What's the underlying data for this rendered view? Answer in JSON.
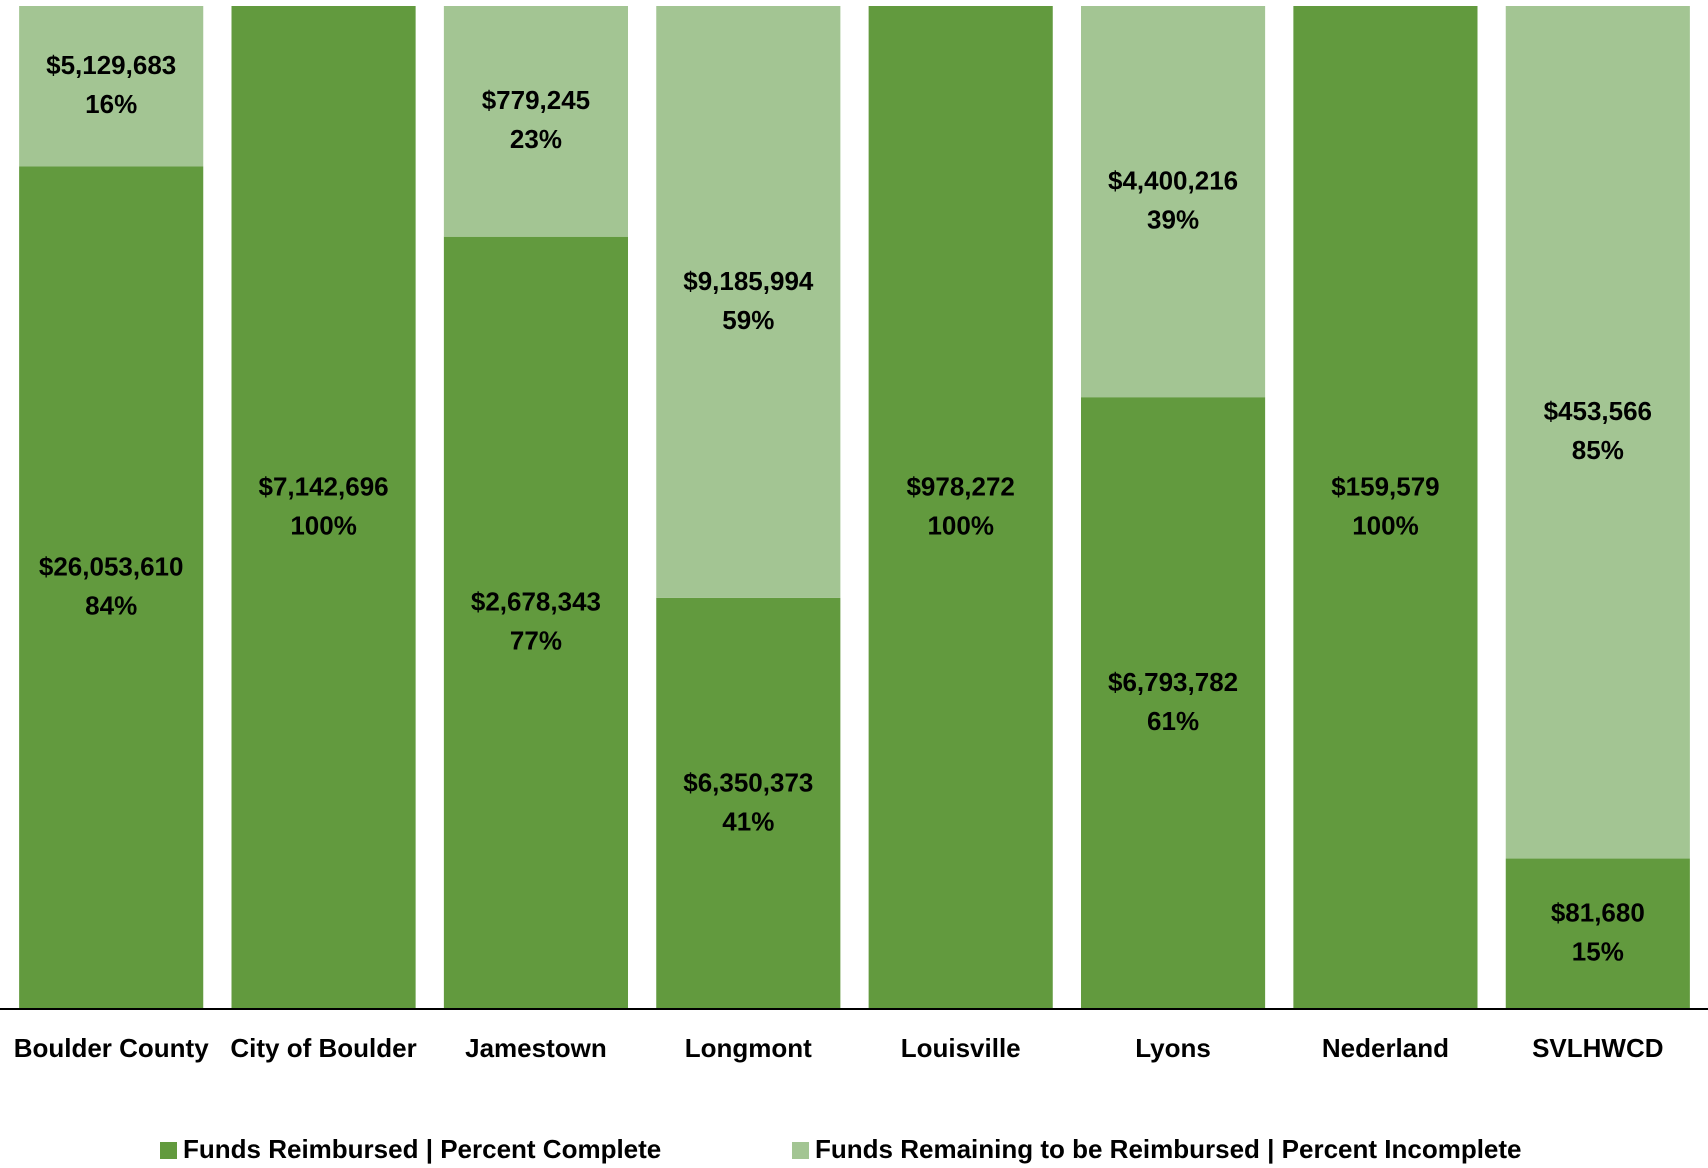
{
  "chart_data": {
    "type": "stacked_bar_100",
    "categories": [
      "Boulder County",
      "City of Boulder",
      "Jamestown",
      "Longmont",
      "Louisville",
      "Lyons",
      "Nederland",
      "SVLHWCD"
    ],
    "ylim": [
      0,
      100
    ],
    "legend": "bottom",
    "series": [
      {
        "name": "Funds Reimbursed | Percent Complete",
        "color": "#629a3e",
        "values": [
          84,
          100,
          77,
          41,
          100,
          61,
          100,
          15
        ],
        "value_labels": [
          "84%",
          "100%",
          "77%",
          "41%",
          "100%",
          "61%",
          "100%",
          "15%"
        ],
        "amounts": [
          26053610,
          7142696,
          2678343,
          6350373,
          978272,
          6793782,
          159579,
          81680
        ],
        "amount_labels": [
          "$26,053,610",
          "$7,142,696",
          "$2,678,343",
          "$6,350,373",
          "$978,272",
          "$6,793,782",
          "$159,579",
          "$81,680"
        ]
      },
      {
        "name": "Funds Remaining to be Reimbursed | Percent Incomplete",
        "color": "#a3c593",
        "values": [
          16,
          0,
          23,
          59,
          0,
          39,
          0,
          85
        ],
        "value_labels": [
          "16%",
          null,
          "23%",
          "59%",
          null,
          "39%",
          null,
          "85%"
        ],
        "amounts": [
          5129683,
          null,
          779245,
          9185994,
          null,
          4400216,
          null,
          453566
        ],
        "amount_labels": [
          "$5,129,683",
          null,
          "$779,245",
          "$9,185,994",
          null,
          "$4,400,216",
          null,
          "$453,566"
        ]
      }
    ]
  }
}
